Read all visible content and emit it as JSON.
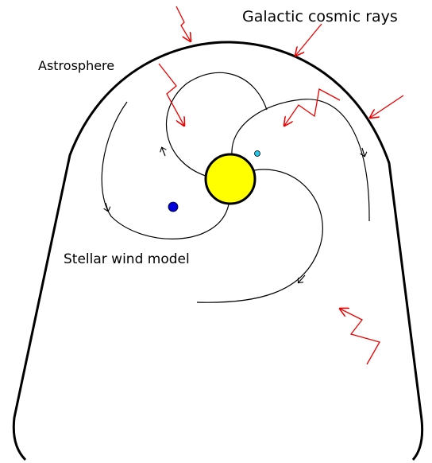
{
  "labels": {
    "cosmic_rays": "Galactic cosmic rays",
    "astrosphere": "Astrosphere",
    "stellar_wind": "Stellar wind model"
  }
}
